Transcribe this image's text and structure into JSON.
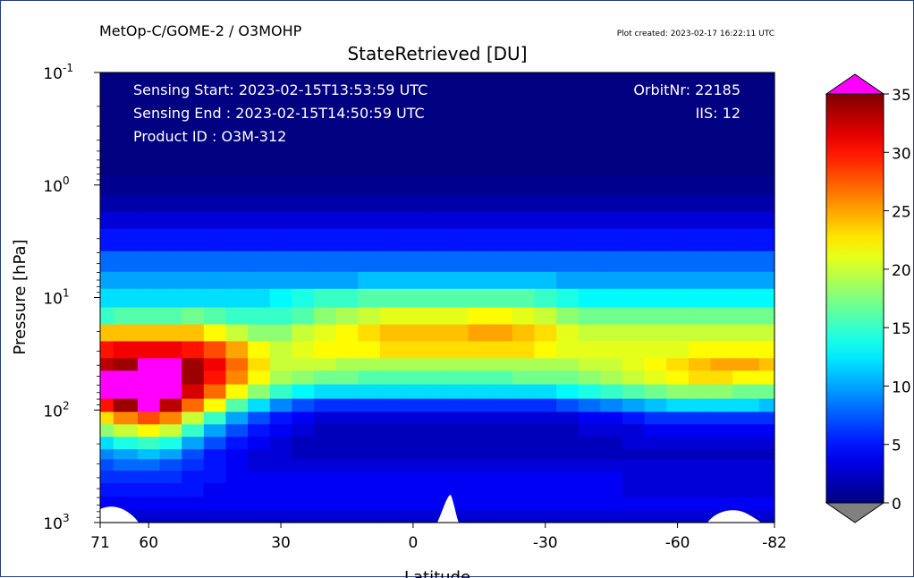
{
  "header": {
    "product": "MetOp-C/GOME-2 / O3MOHP",
    "created": "Plot created: 2023-02-17 16:22:11 UTC"
  },
  "info": {
    "sensing_start": "Sensing Start: 2023-02-15T13:53:59 UTC",
    "sensing_end": "Sensing End  : 2023-02-15T14:50:59 UTC",
    "product_id": "Product ID    : O3M-312",
    "orbit": "OrbitNr: 22185",
    "iis": "IIS: 12"
  },
  "chart_data": {
    "type": "heatmap",
    "title": "StateRetrieved [DU]",
    "xlabel": "Latitude",
    "ylabel": "Pressure [hPa]",
    "xlim": [
      71,
      -82
    ],
    "x_ticks": [
      71,
      60,
      30,
      0,
      -30,
      -60,
      -82
    ],
    "x_tick_labels": [
      "71",
      "60",
      "30",
      "0",
      "-30",
      "-60",
      "-82"
    ],
    "y_scale": "log",
    "ylim": [
      1000,
      0.1
    ],
    "y_ticks": [
      0.1,
      1,
      10,
      100,
      1000
    ],
    "y_tick_exponents": [
      "-1",
      "0",
      "1",
      "2",
      "3"
    ],
    "colorbar": {
      "colormap": "jet",
      "range": [
        0,
        35
      ],
      "ticks": [
        0,
        5,
        10,
        15,
        20,
        25,
        30,
        35
      ],
      "tick_labels": [
        "0",
        "5",
        "10",
        "15",
        "20",
        "25",
        "30",
        "35"
      ],
      "over_color": "#ff00ff",
      "under_color": "#808080"
    },
    "latitudes": [
      71,
      65,
      60,
      55,
      50,
      45,
      40,
      35,
      30,
      25,
      20,
      15,
      10,
      5,
      0,
      -5,
      -10,
      -15,
      -20,
      -25,
      -30,
      -35,
      -40,
      -45,
      -50,
      -55,
      -60,
      -65,
      -70,
      -75,
      -82
    ],
    "pressure_levels": [
      0.1,
      0.2,
      0.4,
      0.7,
      1,
      1.5,
      2,
      3,
      5,
      7,
      10,
      15,
      20,
      30,
      40,
      50,
      70,
      90,
      120,
      150,
      200,
      250,
      300,
      400,
      500,
      700,
      850,
      1000
    ],
    "values": [
      [
        0,
        0,
        0,
        0,
        0,
        0,
        0,
        0,
        0,
        0,
        0,
        0,
        0,
        0,
        0,
        0,
        0,
        0,
        0,
        0,
        0,
        0,
        0,
        0,
        0,
        0,
        0,
        0,
        0,
        0,
        0
      ],
      [
        0,
        0,
        0,
        0,
        0,
        0,
        0,
        0,
        0,
        0,
        0,
        0,
        0,
        0,
        0,
        0,
        0,
        0,
        0,
        0,
        0,
        0,
        0,
        0,
        0,
        0,
        0,
        0,
        0,
        0,
        0
      ],
      [
        0,
        0,
        0,
        0,
        0,
        0,
        0,
        0,
        0,
        0,
        0,
        0,
        0,
        0,
        0,
        0,
        0,
        0,
        0,
        0,
        0,
        0,
        0,
        0,
        0,
        0,
        0,
        0,
        0,
        0,
        0
      ],
      [
        0,
        0,
        0,
        0,
        0,
        0,
        0,
        0,
        0,
        0,
        0,
        0,
        0,
        0,
        0,
        0,
        0,
        0,
        0,
        0,
        0,
        0,
        0,
        0,
        0,
        0,
        0,
        0,
        0,
        0,
        0
      ],
      [
        0.5,
        0.5,
        0.5,
        0.5,
        0.5,
        0.5,
        0.5,
        0.5,
        0.5,
        0.5,
        0.5,
        0.5,
        0.5,
        0.5,
        0.5,
        0.5,
        0.5,
        0.5,
        0.5,
        0.5,
        0.5,
        0.5,
        0.5,
        0.5,
        0.5,
        0.5,
        0.5,
        0.5,
        0.5,
        0.5,
        0.5
      ],
      [
        1.5,
        1.5,
        1.5,
        1.5,
        1.5,
        1.5,
        1.5,
        1.5,
        1.5,
        1.5,
        1.5,
        1.5,
        1.5,
        1.5,
        1.5,
        1.5,
        1.5,
        1.5,
        1.5,
        1.5,
        1.5,
        1.5,
        1.5,
        1.5,
        1.5,
        1.5,
        1.5,
        1.5,
        1.5,
        1.5,
        1.5
      ],
      [
        3,
        3,
        3,
        3,
        3,
        3,
        3,
        3,
        3,
        3,
        3,
        3,
        3,
        3,
        3,
        3,
        3,
        3,
        3,
        3,
        3,
        3,
        3,
        3,
        3,
        3,
        3,
        3,
        3,
        3,
        3
      ],
      [
        5,
        5,
        5,
        5,
        5,
        5,
        5,
        5,
        5,
        5,
        5,
        5,
        5,
        5,
        5,
        5,
        5,
        5,
        5,
        5,
        5,
        5,
        5,
        5,
        5,
        5,
        5,
        5,
        5,
        5,
        5
      ],
      [
        8,
        8,
        8,
        8,
        8,
        8,
        8,
        8,
        8,
        8,
        8,
        8,
        8,
        8,
        8,
        8,
        8,
        8,
        8,
        8,
        8,
        8,
        8,
        8,
        8,
        8,
        8,
        8,
        8,
        8,
        8
      ],
      [
        10,
        10,
        10,
        10,
        10,
        10,
        10,
        10,
        10,
        10,
        10,
        10,
        11,
        11,
        11,
        11,
        11,
        11,
        11,
        11,
        11,
        10,
        10,
        10,
        10,
        10,
        10,
        10,
        10,
        10,
        10
      ],
      [
        12,
        12,
        12,
        12,
        12,
        12,
        12,
        12,
        13,
        14,
        15,
        15,
        16,
        16,
        16,
        16,
        16,
        16,
        16,
        16,
        15,
        14,
        13,
        13,
        13,
        13,
        13,
        13,
        13,
        13,
        13
      ],
      [
        15,
        16,
        16,
        16,
        17,
        16,
        15,
        15,
        15,
        16,
        18,
        19,
        20,
        21,
        21,
        21,
        21,
        22,
        22,
        21,
        20,
        18,
        17,
        17,
        17,
        17,
        17,
        17,
        17,
        17,
        17
      ],
      [
        24,
        24,
        24,
        24,
        24,
        22,
        20,
        18,
        18,
        20,
        21,
        22,
        23,
        24,
        24,
        24,
        24,
        25,
        25,
        24,
        23,
        21,
        20,
        20,
        20,
        20,
        20,
        20,
        20,
        20,
        20
      ],
      [
        30,
        31,
        31,
        31,
        30,
        28,
        25,
        22,
        20,
        21,
        22,
        22,
        22,
        23,
        23,
        23,
        23,
        23,
        23,
        23,
        22,
        21,
        21,
        21,
        21,
        21,
        21,
        22,
        22,
        22,
        22
      ],
      [
        33,
        34,
        36,
        36,
        34,
        31,
        27,
        23,
        20,
        20,
        20,
        19,
        19,
        19,
        19,
        19,
        19,
        19,
        19,
        19,
        19,
        19,
        20,
        20,
        21,
        22,
        23,
        24,
        25,
        25,
        24
      ],
      [
        36,
        38,
        38,
        37,
        34,
        30,
        26,
        22,
        19,
        18,
        17,
        17,
        16,
        16,
        16,
        16,
        16,
        16,
        16,
        17,
        17,
        17,
        18,
        19,
        20,
        21,
        22,
        23,
        23,
        22,
        22
      ],
      [
        37,
        38,
        38,
        36,
        32,
        27,
        22,
        18,
        15,
        13,
        12,
        12,
        12,
        12,
        12,
        12,
        12,
        12,
        12,
        12,
        12,
        13,
        14,
        15,
        16,
        17,
        18,
        18,
        18,
        17,
        17
      ],
      [
        30,
        34,
        36,
        33,
        27,
        22,
        16,
        12,
        9,
        7,
        6,
        6,
        6,
        6,
        6,
        6,
        6,
        6,
        6,
        6,
        6,
        7,
        8,
        9,
        10,
        11,
        12,
        12,
        12,
        12,
        11
      ],
      [
        23,
        26,
        28,
        26,
        20,
        15,
        10,
        7,
        5,
        4,
        3,
        3,
        3,
        3,
        3,
        3,
        3,
        3,
        3,
        3,
        3,
        3,
        4,
        4,
        5,
        6,
        6,
        6,
        6,
        6,
        6
      ],
      [
        18,
        20,
        22,
        20,
        15,
        10,
        7,
        5,
        4,
        3,
        2,
        2,
        2,
        2,
        2,
        2,
        2,
        2,
        2,
        2,
        2,
        2,
        3,
        3,
        3,
        4,
        4,
        4,
        4,
        4,
        4
      ],
      [
        12,
        14,
        15,
        14,
        10,
        7,
        5,
        4,
        3,
        2,
        2,
        2,
        2,
        2,
        2,
        2,
        2,
        2,
        2,
        2,
        2,
        2,
        2,
        2,
        3,
        3,
        3,
        3,
        3,
        3,
        3
      ],
      [
        9,
        10,
        11,
        10,
        7,
        5,
        4,
        3,
        3,
        2,
        2,
        2,
        2,
        2,
        2,
        2,
        2,
        2,
        2,
        2,
        2,
        2,
        2,
        2,
        2,
        2,
        2,
        2,
        2,
        2,
        2
      ],
      [
        7,
        8,
        8,
        7,
        6,
        5,
        4,
        3,
        3,
        3,
        3,
        3,
        3,
        3,
        3,
        3,
        3,
        3,
        3,
        3,
        3,
        3,
        3,
        3,
        3,
        3,
        3,
        3,
        3,
        3,
        3
      ],
      [
        6,
        6,
        6,
        6,
        5,
        5,
        4,
        4,
        4,
        4,
        4,
        4,
        4,
        4,
        4,
        4,
        4,
        4,
        4,
        4,
        4,
        4,
        4,
        4,
        3,
        3,
        3,
        3,
        3,
        3,
        3
      ],
      [
        5,
        5,
        5,
        5,
        5,
        4,
        4,
        4,
        4,
        4,
        4,
        4,
        4,
        4,
        4,
        4,
        4,
        4,
        4,
        4,
        4,
        4,
        4,
        4,
        3,
        3,
        3,
        3,
        3,
        3,
        3
      ],
      [
        4,
        4,
        4,
        4,
        4,
        4,
        4,
        4,
        4,
        4,
        4,
        4,
        4,
        4,
        4,
        4,
        4,
        4,
        4,
        4,
        4,
        4,
        4,
        4,
        4,
        4,
        4,
        4,
        4,
        4,
        4
      ],
      [
        3,
        3,
        3,
        3,
        3,
        3,
        3,
        3,
        3,
        3,
        3,
        3,
        3,
        3,
        3,
        3,
        3,
        3,
        3,
        3,
        3,
        3,
        3,
        3,
        3,
        3,
        3,
        3,
        3,
        3,
        3
      ],
      [
        2,
        2,
        2,
        2,
        2,
        2,
        2,
        2,
        2,
        2,
        2,
        2,
        2,
        2,
        2,
        2,
        2,
        2,
        2,
        2,
        2,
        2,
        2,
        2,
        2,
        2,
        2,
        2,
        2,
        2,
        2
      ]
    ]
  }
}
